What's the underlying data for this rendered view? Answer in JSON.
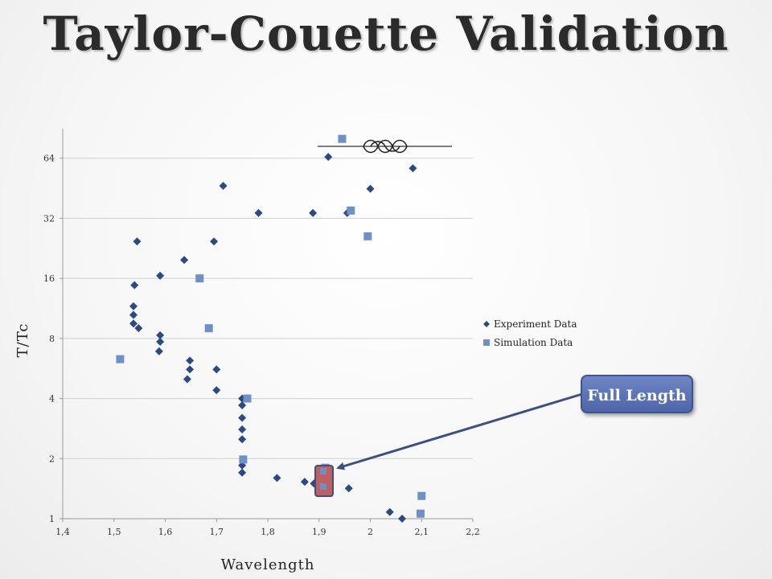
{
  "title": "Taylor-Couette Validation",
  "callout": {
    "label": "Full Length"
  },
  "colors": {
    "experiment": "#2a4a82",
    "simulation": "#6f8fc8",
    "callout": "#5a73b5",
    "highlight": "#bf5f5f",
    "arrow": "#3a4f86"
  },
  "chart_data": {
    "type": "scatter",
    "xlabel": "Wavelength",
    "ylabel": "T/Tc",
    "xlim": [
      1.4,
      2.2
    ],
    "ylim": [
      1,
      90
    ],
    "yscale": "log2",
    "x_ticks": [
      "1,4",
      "1,5",
      "1,6",
      "1,7",
      "1,8",
      "1,9",
      "2",
      "2,1",
      "2,2"
    ],
    "y_ticks": [
      "1",
      "2",
      "4",
      "8",
      "16",
      "32",
      "64"
    ],
    "grid": "horizontal",
    "legend_position": "right",
    "series": [
      {
        "name": "Experiment Data",
        "marker": "diamond",
        "points": [
          [
            1.545,
            24.5
          ],
          [
            1.54,
            14.8
          ],
          [
            1.538,
            11.6
          ],
          [
            1.538,
            10.5
          ],
          [
            1.538,
            9.5
          ],
          [
            1.548,
            9.0
          ],
          [
            1.59,
            16.5
          ],
          [
            1.59,
            8.3
          ],
          [
            1.59,
            7.7
          ],
          [
            1.588,
            6.9
          ],
          [
            1.637,
            19.8
          ],
          [
            1.648,
            6.2
          ],
          [
            1.648,
            5.6
          ],
          [
            1.643,
            5.0
          ],
          [
            1.695,
            24.5
          ],
          [
            1.7,
            5.6
          ],
          [
            1.7,
            4.4
          ],
          [
            1.713,
            46.5
          ],
          [
            1.75,
            4.0
          ],
          [
            1.75,
            3.7
          ],
          [
            1.75,
            3.2
          ],
          [
            1.75,
            2.8
          ],
          [
            1.75,
            2.5
          ],
          [
            1.75,
            1.85
          ],
          [
            1.75,
            1.7
          ],
          [
            1.782,
            34.0
          ],
          [
            1.818,
            1.6
          ],
          [
            1.872,
            1.53
          ],
          [
            1.888,
            34.0
          ],
          [
            1.89,
            1.5
          ],
          [
            1.918,
            65.0
          ],
          [
            1.955,
            34.0
          ],
          [
            1.958,
            1.42
          ],
          [
            2.0,
            45.0
          ],
          [
            2.038,
            1.08
          ],
          [
            2.062,
            1.0
          ],
          [
            2.083,
            57.0
          ]
        ]
      },
      {
        "name": "Simulation Data",
        "marker": "square",
        "points": [
          [
            1.512,
            6.3
          ],
          [
            1.667,
            16.0
          ],
          [
            1.685,
            9.0
          ],
          [
            1.76,
            4.0
          ],
          [
            1.752,
            1.98
          ],
          [
            1.912,
            1.8
          ],
          [
            1.912,
            1.52
          ],
          [
            1.945,
            80.0
          ],
          [
            1.962,
            35.0
          ],
          [
            1.995,
            26.0
          ],
          [
            2.1,
            1.3
          ],
          [
            2.098,
            1.06
          ]
        ]
      }
    ]
  }
}
